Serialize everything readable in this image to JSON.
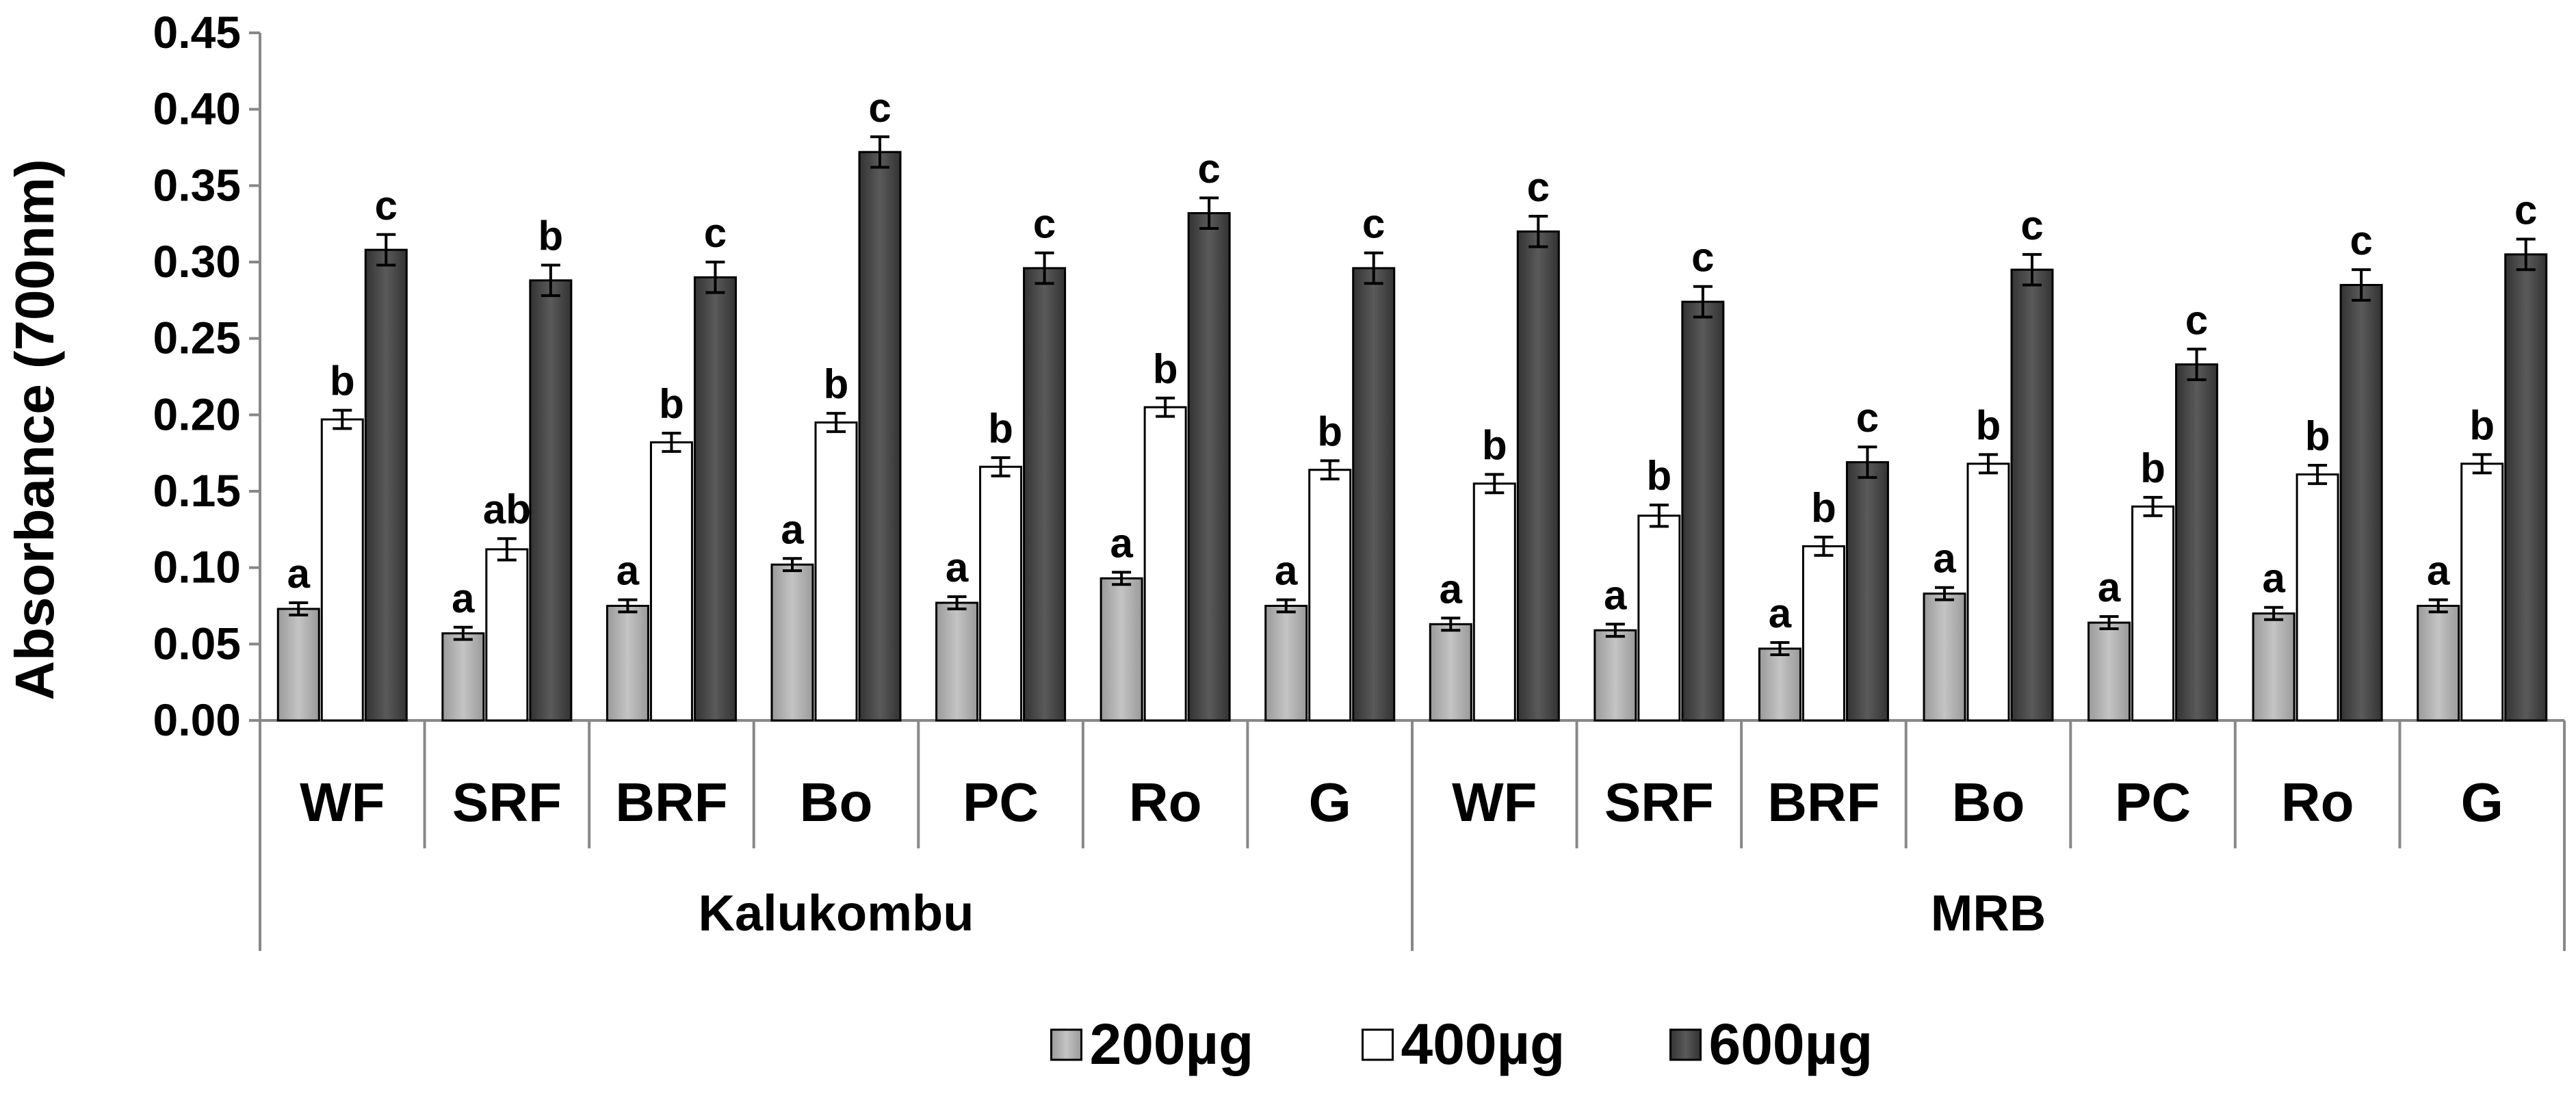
{
  "chart_data": {
    "type": "bar",
    "title": "",
    "xlabel": "",
    "ylabel": "Absorbance (700nm)",
    "ylim": [
      0,
      0.45
    ],
    "yticks": [
      "0.00",
      "0.05",
      "0.10",
      "0.15",
      "0.20",
      "0.25",
      "0.30",
      "0.35",
      "0.40",
      "0.45"
    ],
    "legend_position": "bottom-center",
    "groups": [
      {
        "name": "Kalukombu",
        "categories": [
          "WF",
          "SRF",
          "BRF",
          "Bo",
          "PC",
          "Ro",
          "G"
        ]
      },
      {
        "name": "MRB",
        "categories": [
          "WF",
          "SRF",
          "BRF",
          "Bo",
          "PC",
          "Ro",
          "G"
        ]
      }
    ],
    "categories": [
      "WF",
      "SRF",
      "BRF",
      "Bo",
      "PC",
      "Ro",
      "G",
      "WF",
      "SRF",
      "BRF",
      "Bo",
      "PC",
      "Ro",
      "G"
    ],
    "series": [
      {
        "name": "200µg",
        "color": "#a6a6a6",
        "values": [
          0.073,
          0.057,
          0.075,
          0.102,
          0.077,
          0.093,
          0.075,
          0.063,
          0.059,
          0.047,
          0.083,
          0.064,
          0.07,
          0.075
        ],
        "errors": [
          0.004,
          0.004,
          0.004,
          0.004,
          0.004,
          0.004,
          0.004,
          0.004,
          0.004,
          0.004,
          0.004,
          0.004,
          0.004,
          0.004
        ],
        "labels": [
          "a",
          "a",
          "a",
          "a",
          "a",
          "a",
          "a",
          "a",
          "a",
          "a",
          "a",
          "a",
          "a",
          "a"
        ]
      },
      {
        "name": "400µg",
        "color": "#ffffff",
        "values": [
          0.197,
          0.112,
          0.182,
          0.195,
          0.166,
          0.205,
          0.164,
          0.155,
          0.134,
          0.114,
          0.168,
          0.14,
          0.161,
          0.168
        ],
        "errors": [
          0.006,
          0.007,
          0.006,
          0.006,
          0.006,
          0.006,
          0.006,
          0.006,
          0.007,
          0.006,
          0.006,
          0.006,
          0.006,
          0.006
        ],
        "labels": [
          "b",
          "ab",
          "b",
          "b",
          "b",
          "b",
          "b",
          "b",
          "b",
          "b",
          "b",
          "b",
          "b",
          "b"
        ]
      },
      {
        "name": "600µg",
        "color": "#404040",
        "values": [
          0.308,
          0.288,
          0.29,
          0.372,
          0.296,
          0.332,
          0.296,
          0.32,
          0.274,
          0.169,
          0.295,
          0.233,
          0.285,
          0.305
        ],
        "errors": [
          0.01,
          0.01,
          0.01,
          0.01,
          0.01,
          0.01,
          0.01,
          0.01,
          0.01,
          0.01,
          0.01,
          0.01,
          0.01,
          0.01
        ],
        "labels": [
          "c",
          "b",
          "c",
          "c",
          "c",
          "c",
          "c",
          "c",
          "c",
          "c",
          "c",
          "c",
          "c",
          "c"
        ]
      }
    ]
  }
}
